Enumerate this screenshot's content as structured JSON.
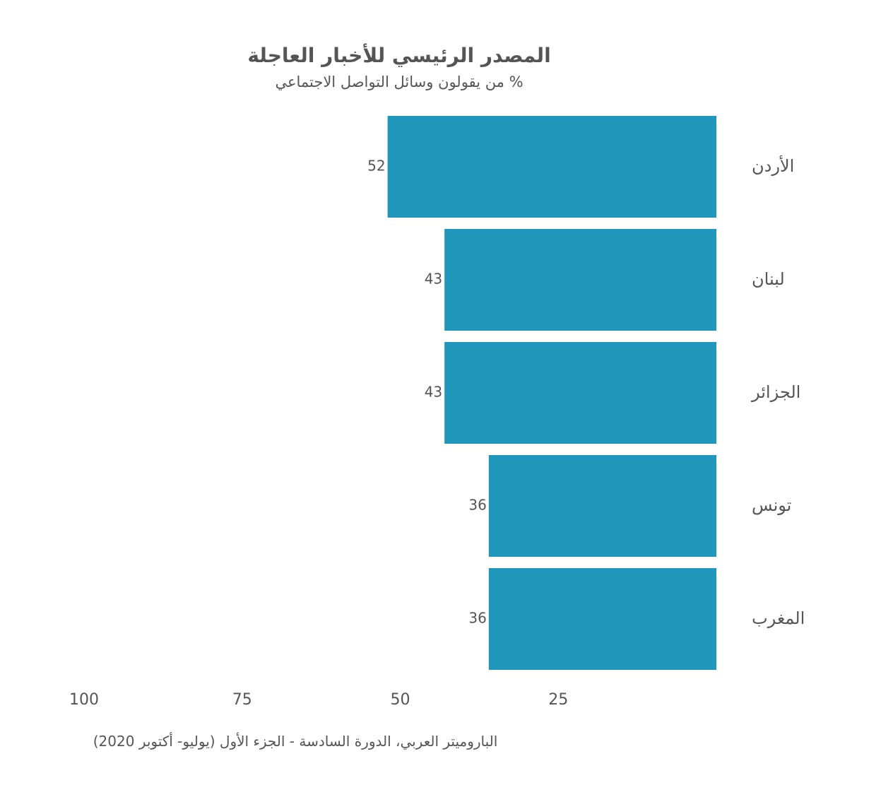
{
  "chart_data": {
    "type": "bar",
    "orientation": "horizontal",
    "direction": "right-to-left",
    "title": "المصدر الرئيسي للأخبار العاجلة",
    "subtitle": "% من يقولون وسائل التواصل الاجتماعي",
    "categories": [
      "الأردن",
      "لبنان",
      "الجزائر",
      "تونس",
      "المغرب"
    ],
    "values": [
      52,
      43,
      43,
      36,
      36
    ],
    "xlim": [
      0,
      100
    ],
    "xticks": [
      100,
      75,
      50,
      25
    ],
    "grid": false,
    "legend": "none",
    "bar_color": "#2196BB",
    "text_color": "#555555",
    "source": "الباروميتر العربي، الدورة السادسة - الجزء الأول (يوليو- أكتوبر 2020)"
  }
}
